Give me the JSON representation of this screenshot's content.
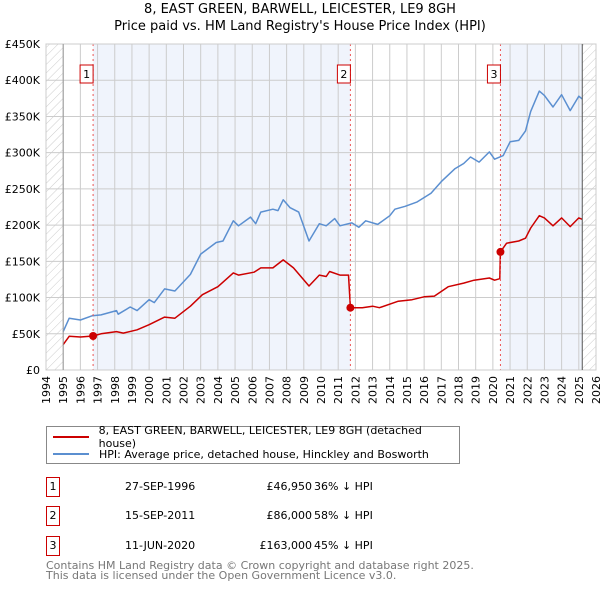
{
  "chart_data": {
    "type": "line",
    "title": "8, EAST GREEN, BARWELL, LEICESTER, LE9 8GH",
    "subtitle": "Price paid vs. HM Land Registry's House Price Index (HPI)",
    "xlabel": "",
    "ylabel": "",
    "xlim": [
      1994,
      2026
    ],
    "ylim": [
      0,
      450000
    ],
    "grid": true,
    "x_ticks": [
      "1994",
      "1995",
      "1996",
      "1997",
      "1998",
      "1999",
      "2000",
      "2001",
      "2002",
      "2003",
      "2004",
      "2005",
      "2006",
      "2007",
      "2008",
      "2009",
      "2010",
      "2011",
      "2012",
      "2013",
      "2014",
      "2015",
      "2016",
      "2017",
      "2018",
      "2019",
      "2020",
      "2021",
      "2022",
      "2023",
      "2024",
      "2025",
      "2026"
    ],
    "y_ticks": [
      {
        "value": 0,
        "label": "£0"
      },
      {
        "value": 50000,
        "label": "£50K"
      },
      {
        "value": 100000,
        "label": "£100K"
      },
      {
        "value": 150000,
        "label": "£150K"
      },
      {
        "value": 200000,
        "label": "£200K"
      },
      {
        "value": 250000,
        "label": "£250K"
      },
      {
        "value": 300000,
        "label": "£300K"
      },
      {
        "value": 350000,
        "label": "£350K"
      },
      {
        "value": 400000,
        "label": "£400K"
      },
      {
        "value": 450000,
        "label": "£450K"
      }
    ],
    "data_range": [
      1995,
      2025.2
    ],
    "series": [
      {
        "name": "8, EAST GREEN, BARWELL, LEICESTER, LE9 8GH (detached house)",
        "color": "#cc0000",
        "x": [
          1995,
          1995.35,
          1996,
          1996.74,
          1997.2,
          1998.1,
          1998.5,
          1999.3,
          2000,
          2000.9,
          2001.5,
          2002.4,
          2003.1,
          2004,
          2004.9,
          2005.2,
          2006.1,
          2006.5,
          2007.2,
          2007.8,
          2008.4,
          2009.3,
          2009.9,
          2010.3,
          2010.5,
          2011.1,
          2011.6,
          2011.71,
          2012.4,
          2013,
          2013.4,
          2014.5,
          2015.3,
          2016,
          2016.6,
          2017.4,
          2018.3,
          2018.9,
          2019.8,
          2020.1,
          2020.4,
          2020.44,
          2020.8,
          2021.5,
          2021.9,
          2022.2,
          2022.7,
          2023,
          2023.5,
          2024,
          2024.5,
          2025,
          2025.2
        ],
        "y": [
          35000,
          46500,
          45500,
          46950,
          50000,
          53000,
          51000,
          55500,
          62500,
          73000,
          71500,
          88000,
          104000,
          115000,
          134000,
          131000,
          135000,
          141000,
          141000,
          152000,
          141000,
          116000,
          131000,
          129000,
          136000,
          131000,
          131000,
          86000,
          86000,
          88000,
          86000,
          95000,
          97000,
          101000,
          102000,
          115000,
          120000,
          124000,
          127000,
          124000,
          126000,
          163000,
          175000,
          178000,
          182000,
          196000,
          213000,
          210000,
          199000,
          210000,
          198000,
          210000,
          208000
        ]
      },
      {
        "name": "HPI: Average price, detached house, Hinckley and Bosworth",
        "color": "#5b8fd0",
        "x": [
          1995,
          1995.35,
          1996,
          1996.7,
          1997.2,
          1998.1,
          1998.2,
          1998.9,
          1999.3,
          2000,
          2000.3,
          2000.9,
          2001.5,
          2002.4,
          2003,
          2003.9,
          2004.3,
          2004.9,
          2005.2,
          2005.9,
          2006.2,
          2006.5,
          2007.2,
          2007.5,
          2007.8,
          2008.2,
          2008.7,
          2009.3,
          2009.9,
          2010.3,
          2010.8,
          2011.1,
          2011.8,
          2012.2,
          2012.6,
          2013.3,
          2014,
          2014.3,
          2014.9,
          2015.6,
          2016.2,
          2016.4,
          2017,
          2017.8,
          2018.3,
          2018.7,
          2019.2,
          2019.8,
          2020.1,
          2020.6,
          2021,
          2021.5,
          2021.9,
          2022.2,
          2022.7,
          2023,
          2023.5,
          2024,
          2024.5,
          2025,
          2025.2
        ],
        "y": [
          53000,
          71500,
          69000,
          75000,
          76000,
          82000,
          77000,
          87000,
          82000,
          97000,
          93000,
          112000,
          109000,
          132000,
          160000,
          176000,
          178000,
          206000,
          199000,
          211000,
          202000,
          218000,
          222000,
          220000,
          235000,
          224000,
          218000,
          178000,
          202000,
          199000,
          209000,
          199000,
          203000,
          197000,
          206000,
          201000,
          213000,
          222000,
          226000,
          232000,
          241000,
          244000,
          260000,
          278000,
          285000,
          294000,
          287000,
          301000,
          291000,
          296000,
          315000,
          317000,
          330000,
          357000,
          385000,
          379000,
          363000,
          380000,
          358000,
          378000,
          374000
        ]
      }
    ],
    "sales": [
      {
        "num": "1",
        "x": 1996.74,
        "y": 46950,
        "date": "27-SEP-1996",
        "price": "£46,950",
        "hpi": "36% ↓ HPI"
      },
      {
        "num": "2",
        "x": 2011.71,
        "y": 86000,
        "date": "15-SEP-2011",
        "price": "£86,000",
        "hpi": "58% ↓ HPI"
      },
      {
        "num": "3",
        "x": 2020.44,
        "y": 163000,
        "date": "11-JUN-2020",
        "price": "£163,000",
        "hpi": "45% ↓ HPI"
      }
    ],
    "legend": [
      {
        "label": "8, EAST GREEN, BARWELL, LEICESTER, LE9 8GH (detached house)",
        "color": "#cc0000"
      },
      {
        "label": "HPI: Average price, detached house, Hinckley and Bosworth",
        "color": "#5b8fd0"
      }
    ],
    "legend_placement": "bottom"
  },
  "footer": {
    "line1": "Contains HM Land Registry data © Crown copyright and database right 2025.",
    "line2": "This data is licensed under the Open Government Licence v3.0."
  }
}
